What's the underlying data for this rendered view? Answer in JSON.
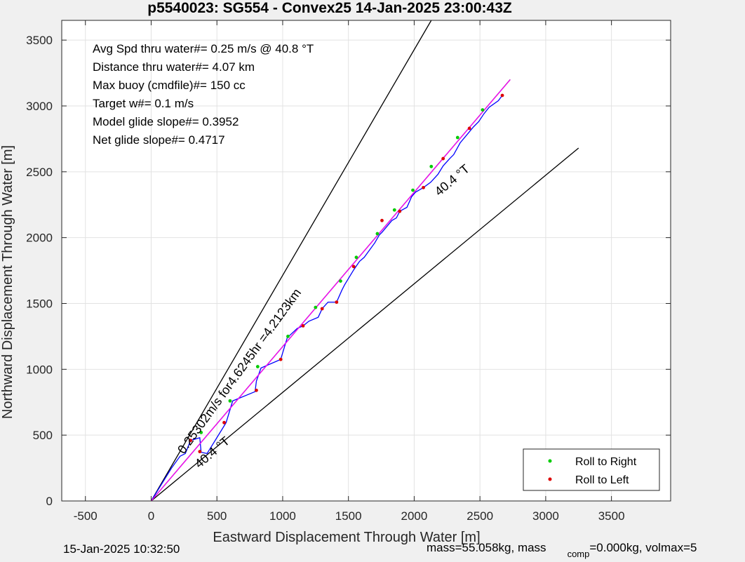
{
  "title": "p5540023: SG554 - Convex25 14-Jan-2025 23:00:43Z",
  "chart_data": {
    "type": "line",
    "xlabel": "Eastward Displacement Through Water [m]",
    "ylabel": "Northward Displacement Through Water [m]",
    "xlim": [
      -680,
      3950
    ],
    "ylim": [
      0,
      3650
    ],
    "xticks": [
      -500,
      0,
      500,
      1000,
      1500,
      2000,
      2500,
      3000,
      3500
    ],
    "yticks": [
      0,
      500,
      1000,
      1500,
      2000,
      2500,
      3000,
      3500
    ],
    "grid": true,
    "info_lines": [
      "Avg Spd thru water#=  0.25 m/s @  40.8         °T",
      "Distance thru water#=  4.07 km",
      "Max buoy (cmdfile)#= 150 cc",
      "Target w#= 0.1 m/s",
      "Model glide slope#= 0.3952",
      "Net glide slope#= 0.4717"
    ],
    "annotations": {
      "speed_label": "0.25302m/s for4.6245hr =4.2123km",
      "heading_label_lower": "40.4 °T",
      "heading_label_upper": "40.4 °T"
    },
    "reference_lines": [
      {
        "x": [
          0,
          2130
        ],
        "y": [
          0,
          3650
        ]
      },
      {
        "x": [
          0,
          3250
        ],
        "y": [
          0,
          2680
        ]
      },
      {
        "x": [
          0,
          2730
        ],
        "y": [
          0,
          3200
        ]
      }
    ],
    "series": [
      {
        "name": "track",
        "color": "#0000ff",
        "x": [
          0,
          155,
          220,
          260,
          300,
          370,
          380,
          425,
          555,
          570,
          620,
          790,
          800,
          835,
          950,
          985,
          1035,
          1110,
          1155,
          1200,
          1270,
          1300,
          1345,
          1410,
          1450,
          1470,
          1540,
          1585,
          1620,
          1700,
          1735,
          1755,
          1830,
          1865,
          1890,
          1945,
          1980,
          2010,
          2070,
          2125,
          2180,
          2220,
          2270,
          2300,
          2350,
          2400,
          2450,
          2490,
          2530,
          2570,
          2640,
          2670
        ],
        "y": [
          0,
          250,
          340,
          360,
          460,
          480,
          370,
          360,
          570,
          595,
          760,
          830,
          910,
          1010,
          1060,
          1075,
          1240,
          1310,
          1330,
          1365,
          1395,
          1460,
          1510,
          1510,
          1600,
          1640,
          1755,
          1820,
          1850,
          1960,
          2020,
          2040,
          2130,
          2150,
          2200,
          2230,
          2310,
          2345,
          2380,
          2420,
          2480,
          2545,
          2600,
          2630,
          2720,
          2780,
          2840,
          2880,
          2940,
          2990,
          3040,
          3080
        ]
      },
      {
        "name": "model",
        "color": "#ff00ff",
        "x": [
          0,
          2730
        ],
        "y": [
          0,
          3200
        ]
      }
    ],
    "roll_right_points": {
      "x": [
        380,
        600,
        810,
        1040,
        1250,
        1440,
        1560,
        1720,
        1850,
        1990,
        2130,
        2330,
        2520
      ],
      "y": [
        520,
        760,
        1020,
        1250,
        1470,
        1670,
        1850,
        2030,
        2210,
        2360,
        2540,
        2760,
        2970
      ]
    },
    "roll_left_points": {
      "x": [
        300,
        370,
        555,
        800,
        985,
        1155,
        1300,
        1410,
        1540,
        1755,
        1890,
        2070,
        2220,
        2420,
        2670
      ],
      "y": [
        460,
        375,
        595,
        840,
        1075,
        1330,
        1460,
        1510,
        1780,
        2130,
        2200,
        2380,
        2600,
        2830,
        3080
      ]
    },
    "legend": {
      "placement": "bottom-right",
      "entries": [
        {
          "label": "Roll to Right",
          "color": "#00cc00"
        },
        {
          "label": "Roll to Left",
          "color": "#dd0000"
        }
      ]
    }
  },
  "footer": {
    "date": "15-Jan-2025 10:32:50",
    "mass_text": "mass=55.058kg, mass",
    "comp_sub": "comp",
    "tail_text": "=0.000kg, volmax=5"
  }
}
